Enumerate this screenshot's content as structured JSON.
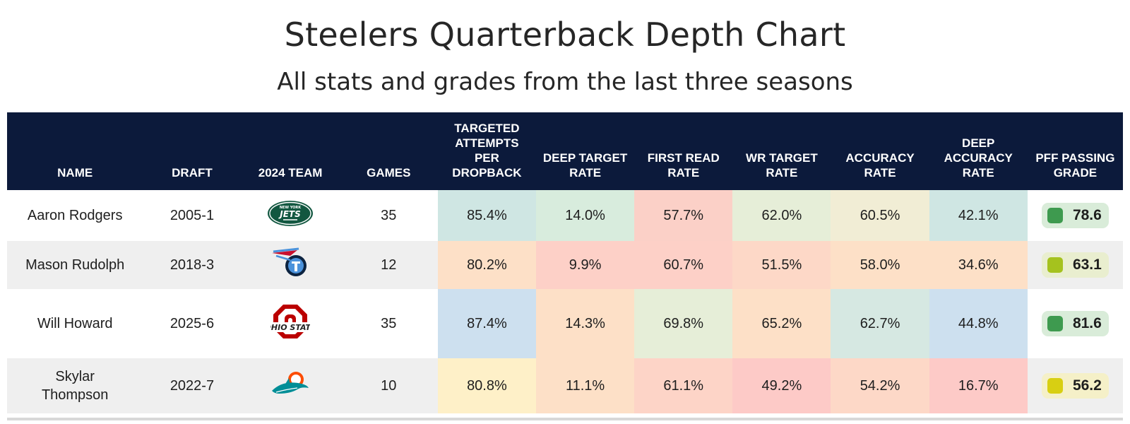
{
  "title": "Steelers Quarterback Depth Chart",
  "subtitle": "All stats and grades from the last three seasons",
  "colors": {
    "header_bg": "#0c1a3b",
    "grade_green": "#3e9a4f",
    "grade_yellowgreen": "#a5c21e",
    "grade_yellow": "#d8cf12"
  },
  "chart_data": {
    "type": "table",
    "columns": [
      "NAME",
      "DRAFT",
      "2024 TEAM",
      "GAMES",
      "TARGETED ATTEMPTS PER DROPBACK",
      "DEEP TARGET RATE",
      "FIRST READ RATE",
      "WR TARGET RATE",
      "ACCURACY RATE",
      "DEEP ACCURACY RATE",
      "PFF PASSING GRADE"
    ],
    "rows": [
      {
        "name": "Aaron Rodgers",
        "draft": "2005-1",
        "team_icon": "jets-logo-icon",
        "games": "35",
        "stats": [
          "85.4%",
          "14.0%",
          "57.7%",
          "62.0%",
          "60.5%",
          "42.1%"
        ],
        "stat_colors": [
          "#cfe6e3",
          "#d8ecdd",
          "#fbd0c7",
          "#e6eed8",
          "#f1edd5",
          "#cfe6e3"
        ],
        "grade": "78.6",
        "grade_color": "#3e9a4f",
        "grade_bg": "#d9ecd9"
      },
      {
        "name": "Mason Rudolph",
        "draft": "2018-3",
        "team_icon": "titans-logo-icon",
        "games": "12",
        "stats": [
          "80.2%",
          "9.9%",
          "60.7%",
          "51.5%",
          "58.0%",
          "34.6%"
        ],
        "stat_colors": [
          "#fde0c7",
          "#fdd0c7",
          "#fdd0c7",
          "#fdd8c7",
          "#fde0c7",
          "#fde0c7"
        ],
        "grade": "63.1",
        "grade_color": "#a5c21e",
        "grade_bg": "#e9eecf"
      },
      {
        "name": "Will Howard",
        "draft": "2025-6",
        "team_icon": "ohio-state-logo-icon",
        "games": "35",
        "stats": [
          "87.4%",
          "14.3%",
          "69.8%",
          "65.2%",
          "62.7%",
          "44.8%"
        ],
        "stat_colors": [
          "#cde0ef",
          "#fde0c7",
          "#e6eed8",
          "#fde0c7",
          "#d6e8e2",
          "#cde0ef"
        ],
        "grade": "81.6",
        "grade_color": "#3e9a4f",
        "grade_bg": "#d9ecd9"
      },
      {
        "name": "Skylar\nThompson",
        "draft": "2022-7",
        "team_icon": "dolphins-logo-icon",
        "games": "10",
        "stats": [
          "80.8%",
          "11.1%",
          "61.1%",
          "49.2%",
          "54.2%",
          "16.7%"
        ],
        "stat_colors": [
          "#fef0c8",
          "#fde0c7",
          "#fdd4c7",
          "#fdcac7",
          "#fdd8c7",
          "#fdcac7"
        ],
        "grade": "56.2",
        "grade_color": "#d8cf12",
        "grade_bg": "#f5f0c8"
      }
    ]
  }
}
